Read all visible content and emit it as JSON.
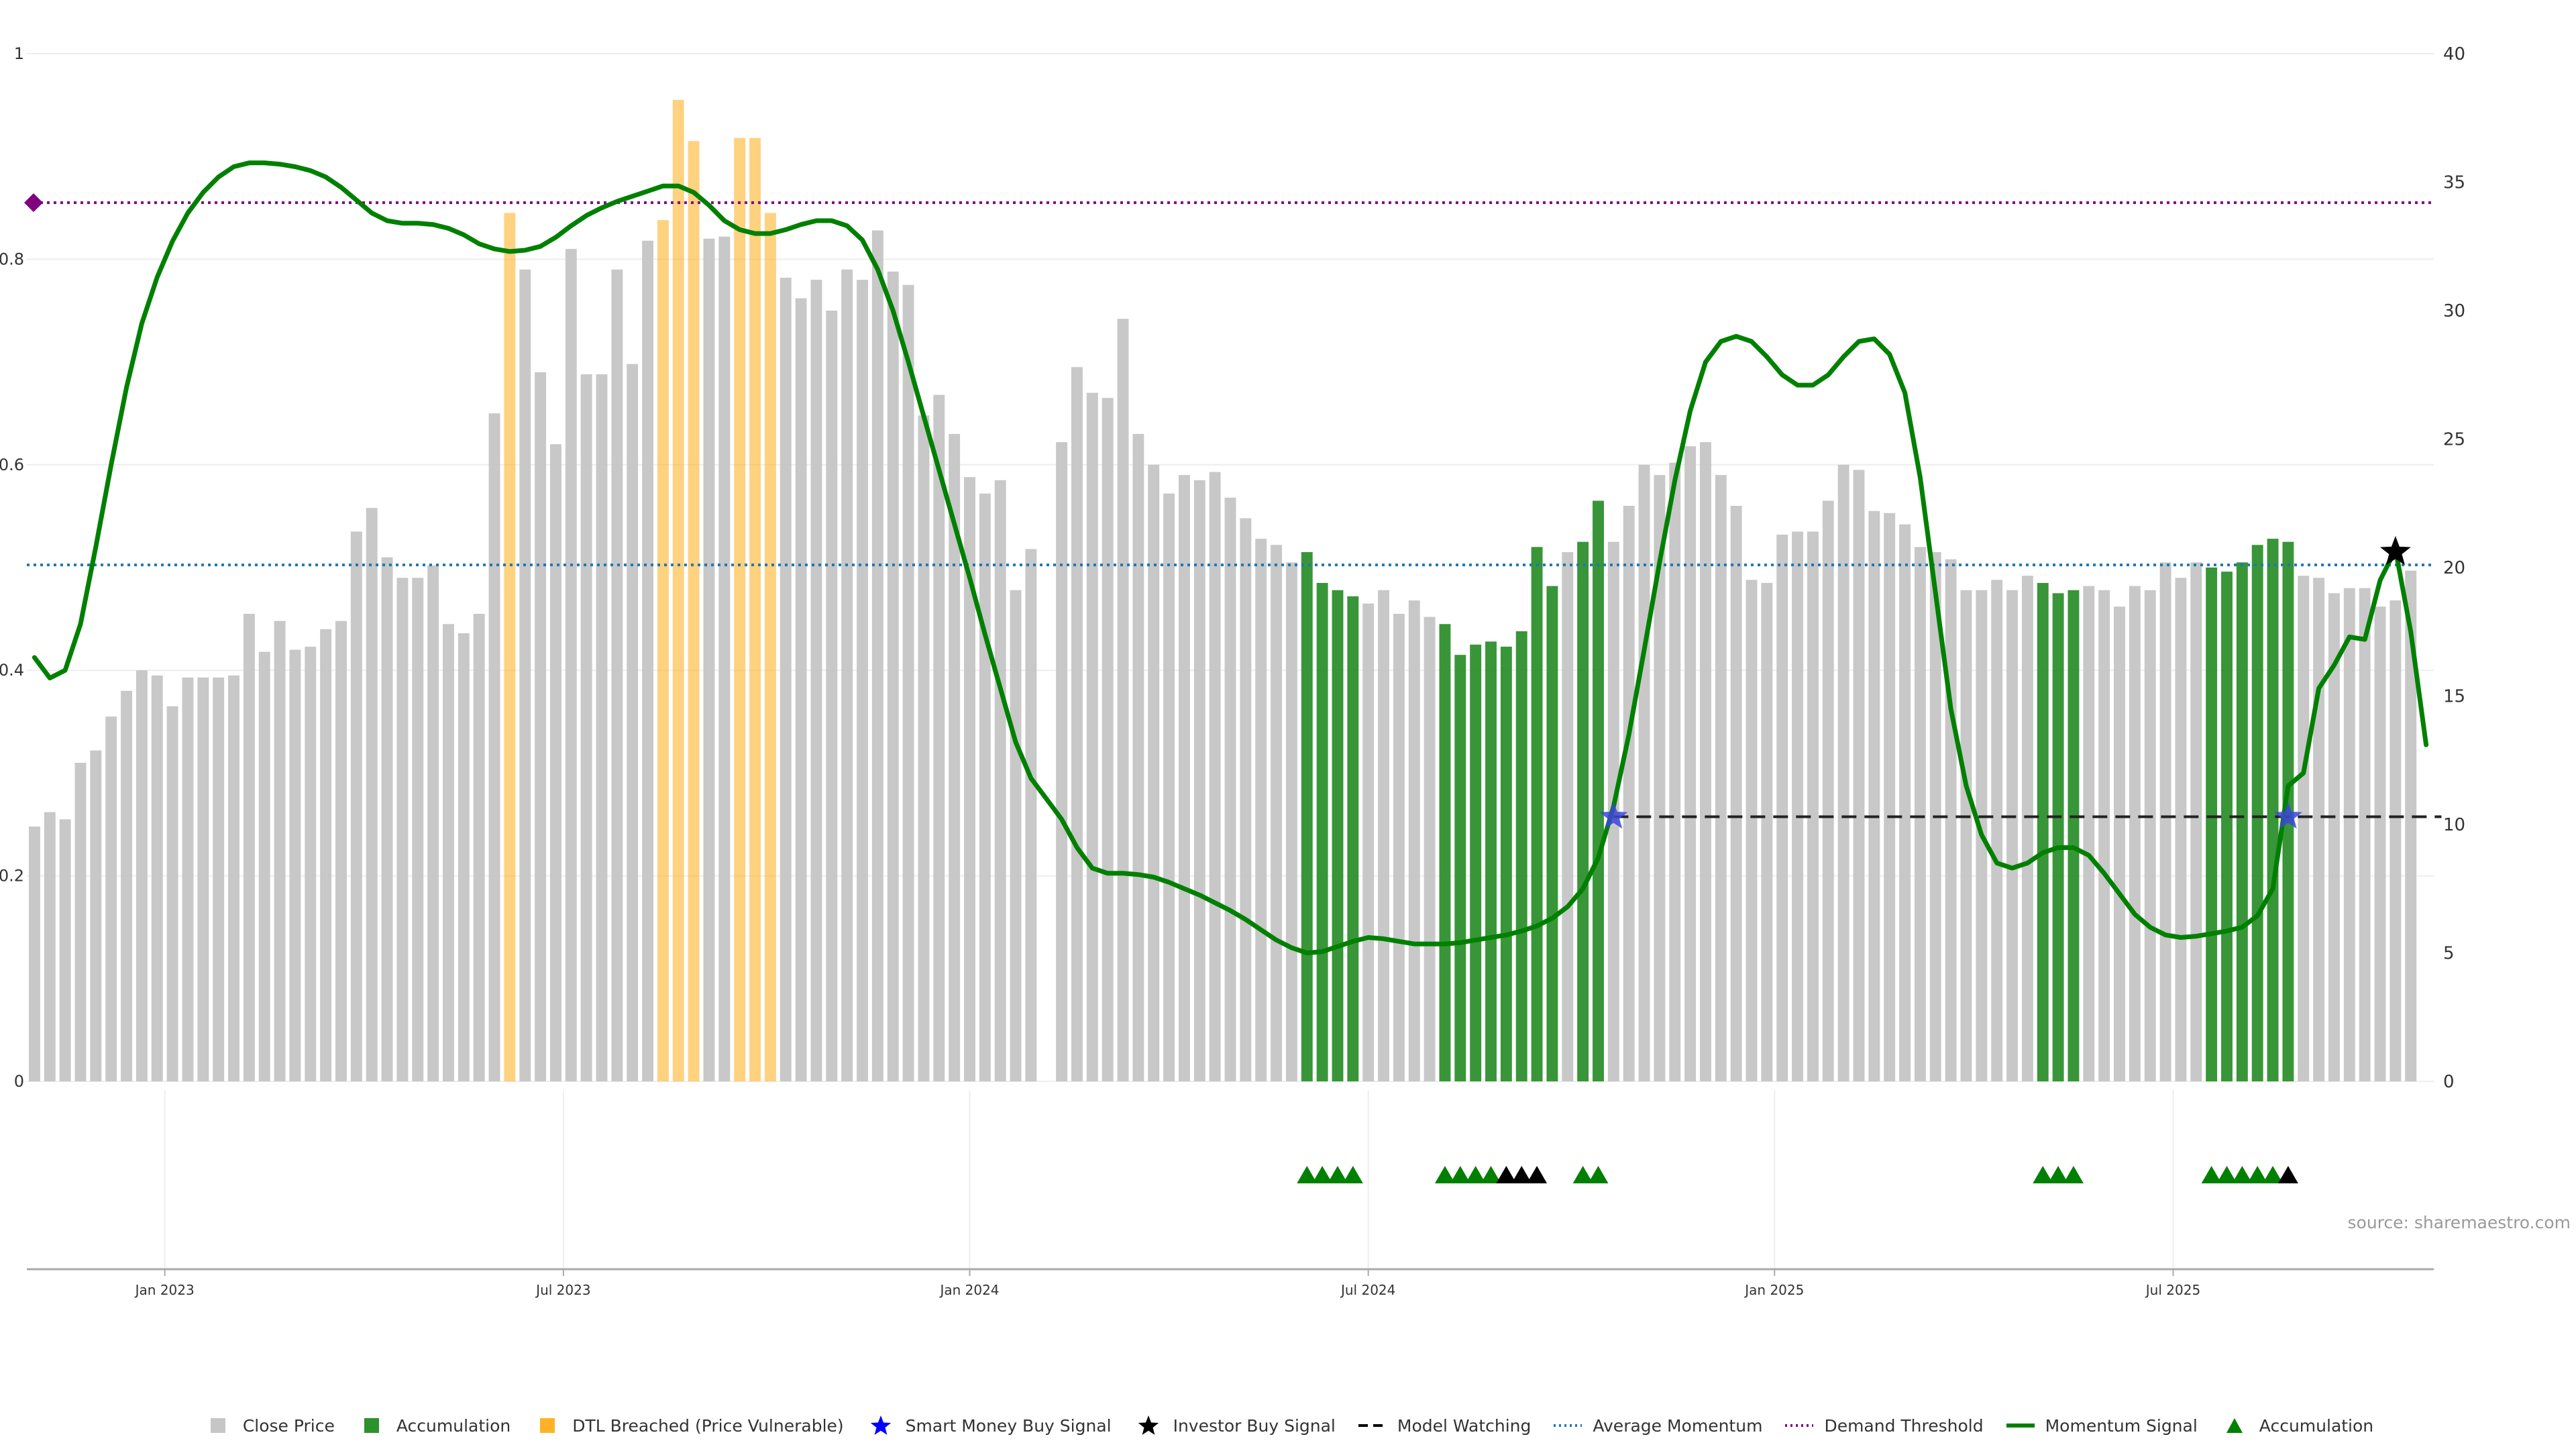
{
  "source_note": "source: sharemaestro.com",
  "legend": [
    {
      "label": "Close Price",
      "kind": "square",
      "color": "#c3c3c3"
    },
    {
      "label": "Accumulation",
      "kind": "square",
      "color": "#228b22"
    },
    {
      "label": "DTL Breached (Price Vulnerable)",
      "kind": "square",
      "color": "#ffa500"
    },
    {
      "label": "Smart Money Buy Signal",
      "kind": "star",
      "color": "#0000ff"
    },
    {
      "label": "Investor Buy Signal",
      "kind": "star",
      "color": "#000000"
    },
    {
      "label": "Model Watching",
      "kind": "dash",
      "color": "#000000"
    },
    {
      "label": "Average Momentum",
      "kind": "dot",
      "color": "#1f77b4"
    },
    {
      "label": "Demand Threshold",
      "kind": "dot",
      "color": "#800080"
    },
    {
      "label": "Momentum Signal",
      "kind": "line",
      "color": "#008000"
    },
    {
      "label": "Accumulation",
      "kind": "triangle",
      "color": "#008000"
    }
  ],
  "chart_data": {
    "type": "bar",
    "left_axis": {
      "ylim": [
        0,
        1
      ],
      "ticks": [
        "0",
        "0.2",
        "0.4",
        "0.6",
        "0.8",
        "1"
      ]
    },
    "right_axis": {
      "ylim": [
        0,
        40
      ],
      "ticks": [
        "0",
        "5",
        "10",
        "15",
        "20",
        "25",
        "30",
        "35",
        "40"
      ]
    },
    "x_ticks": [
      {
        "label": "Jan 2023",
        "week": 8.5
      },
      {
        "label": "Jul 2023",
        "week": 34.5
      },
      {
        "label": "Jan 2024",
        "week": 61
      },
      {
        "label": "Jul 2024",
        "week": 87
      },
      {
        "label": "Jan 2025",
        "week": 113.5
      },
      {
        "label": "Jul 2025",
        "week": 139.5
      }
    ],
    "bar_colors": {
      "price": "#c3c3c3",
      "accumulation": "#228b22",
      "dtl": "#ffa500"
    },
    "close_price_weekly": [
      0.248,
      0.262,
      0.255,
      0.31,
      0.322,
      0.355,
      0.38,
      0.4,
      0.395,
      0.365,
      0.393,
      0.393,
      0.393,
      0.395,
      0.455,
      0.418,
      0.448,
      0.42,
      0.423,
      0.44,
      0.448,
      0.535,
      0.558,
      0.51,
      0.49,
      0.49,
      0.502,
      0.445,
      0.436,
      0.455,
      0.65,
      0.845,
      0.79,
      0.69,
      0.62,
      0.81,
      0.688,
      0.688,
      0.79,
      0.698,
      0.818,
      0.838,
      0.955,
      0.915,
      0.82,
      0.822,
      0.918,
      0.918,
      0.845,
      0.782,
      0.762,
      0.78,
      0.75,
      0.79,
      0.78,
      0.828,
      0.788,
      0.775,
      0.648,
      0.668,
      0.63,
      0.588,
      0.572,
      0.585,
      0.478,
      0.518,
      null,
      0.622,
      0.695,
      0.67,
      0.665,
      0.742,
      0.63,
      0.6,
      0.572,
      0.59,
      0.585,
      0.593,
      0.568,
      0.548,
      0.528,
      0.522,
      0.505,
      0.515,
      0.485,
      0.478,
      0.472,
      0.465,
      0.478,
      0.455,
      0.468,
      0.452,
      0.445,
      0.415,
      0.425,
      0.428,
      0.423,
      0.438,
      0.52,
      0.482,
      0.515,
      0.525,
      0.565,
      0.525,
      0.56,
      0.6,
      0.59,
      0.602,
      0.618,
      0.622,
      0.59,
      0.56,
      0.488,
      0.485,
      0.532,
      0.535,
      0.535,
      0.565,
      0.6,
      0.595,
      0.555,
      0.553,
      0.542,
      0.52,
      0.515,
      0.508,
      0.478,
      0.478,
      0.488,
      0.478,
      0.492,
      0.485,
      0.475,
      0.478,
      0.482,
      0.478,
      0.462,
      0.482,
      0.478,
      0.505,
      0.49,
      0.505,
      0.5,
      0.496,
      0.505,
      0.522,
      0.528,
      0.525,
      0.492,
      0.49,
      0.475,
      0.48,
      0.48,
      0.462,
      0.468,
      0.497
    ],
    "accumulation_weeks": [
      83,
      84,
      85,
      86,
      92,
      93,
      94,
      95,
      96,
      97,
      98,
      99,
      101,
      102,
      131,
      132,
      133,
      142,
      143,
      144,
      145,
      146,
      147
    ],
    "dtl_weeks": [
      31,
      41,
      42,
      43,
      46,
      47,
      48
    ],
    "momentum_signal": {
      "name": "Momentum Signal",
      "color": "#008000",
      "points": [
        [
          0,
          16.5
        ],
        [
          1,
          15.7
        ],
        [
          2,
          16.0
        ],
        [
          3,
          17.8
        ],
        [
          4,
          20.8
        ],
        [
          5,
          24.0
        ],
        [
          6,
          27.0
        ],
        [
          7,
          29.5
        ],
        [
          8,
          31.3
        ],
        [
          9,
          32.7
        ],
        [
          10,
          33.8
        ],
        [
          11,
          34.6
        ],
        [
          12,
          35.2
        ],
        [
          13,
          35.6
        ],
        [
          14,
          35.75
        ],
        [
          15,
          35.75
        ],
        [
          16,
          35.7
        ],
        [
          17,
          35.6
        ],
        [
          18,
          35.45
        ],
        [
          19,
          35.2
        ],
        [
          20,
          34.8
        ],
        [
          21,
          34.3
        ],
        [
          22,
          33.8
        ],
        [
          23,
          33.5
        ],
        [
          24,
          33.4
        ],
        [
          25,
          33.4
        ],
        [
          26,
          33.35
        ],
        [
          27,
          33.2
        ],
        [
          28,
          32.95
        ],
        [
          29,
          32.6
        ],
        [
          30,
          32.4
        ],
        [
          31,
          32.3
        ],
        [
          32,
          32.35
        ],
        [
          33,
          32.5
        ],
        [
          34,
          32.85
        ],
        [
          35,
          33.3
        ],
        [
          36,
          33.7
        ],
        [
          37,
          34.0
        ],
        [
          38,
          34.25
        ],
        [
          39,
          34.45
        ],
        [
          40,
          34.65
        ],
        [
          41,
          34.85
        ],
        [
          42,
          34.85
        ],
        [
          43,
          34.6
        ],
        [
          44,
          34.1
        ],
        [
          45,
          33.5
        ],
        [
          46,
          33.15
        ],
        [
          47,
          33.0
        ],
        [
          48,
          33.0
        ],
        [
          49,
          33.15
        ],
        [
          50,
          33.35
        ],
        [
          51,
          33.5
        ],
        [
          52,
          33.5
        ],
        [
          53,
          33.3
        ],
        [
          54,
          32.75
        ],
        [
          55,
          31.6
        ],
        [
          56,
          30.0
        ],
        [
          57,
          28.0
        ],
        [
          58,
          25.9
        ],
        [
          59,
          23.8
        ],
        [
          60,
          21.7
        ],
        [
          61,
          19.6
        ],
        [
          62,
          17.4
        ],
        [
          63,
          15.3
        ],
        [
          64,
          13.2
        ],
        [
          65,
          11.8
        ],
        [
          66,
          11.0
        ],
        [
          67,
          10.2
        ],
        [
          68,
          9.1
        ],
        [
          69,
          8.3
        ],
        [
          70,
          8.1
        ],
        [
          71,
          8.1
        ],
        [
          72,
          8.05
        ],
        [
          73,
          7.95
        ],
        [
          74,
          7.75
        ],
        [
          75,
          7.5
        ],
        [
          76,
          7.25
        ],
        [
          77,
          6.95
        ],
        [
          78,
          6.65
        ],
        [
          79,
          6.3
        ],
        [
          80,
          5.9
        ],
        [
          81,
          5.5
        ],
        [
          82,
          5.2
        ],
        [
          83,
          5.0
        ],
        [
          84,
          5.05
        ],
        [
          85,
          5.25
        ],
        [
          86,
          5.45
        ],
        [
          87,
          5.6
        ],
        [
          88,
          5.55
        ],
        [
          89,
          5.45
        ],
        [
          90,
          5.35
        ],
        [
          91,
          5.35
        ],
        [
          92,
          5.35
        ],
        [
          93,
          5.4
        ],
        [
          94,
          5.5
        ],
        [
          95,
          5.6
        ],
        [
          96,
          5.7
        ],
        [
          97,
          5.85
        ],
        [
          98,
          6.05
        ],
        [
          99,
          6.35
        ],
        [
          100,
          6.8
        ],
        [
          101,
          7.5
        ],
        [
          102,
          8.7
        ],
        [
          103,
          10.7
        ],
        [
          104,
          13.5
        ],
        [
          105,
          16.8
        ],
        [
          106,
          20.2
        ],
        [
          107,
          23.4
        ],
        [
          108,
          26.1
        ],
        [
          109,
          28.0
        ],
        [
          110,
          28.8
        ],
        [
          111,
          29.0
        ],
        [
          112,
          28.8
        ],
        [
          113,
          28.2
        ],
        [
          114,
          27.5
        ],
        [
          115,
          27.1
        ],
        [
          116,
          27.1
        ],
        [
          117,
          27.5
        ],
        [
          118,
          28.2
        ],
        [
          119,
          28.8
        ],
        [
          120,
          28.9
        ],
        [
          121,
          28.3
        ],
        [
          122,
          26.8
        ],
        [
          123,
          23.5
        ],
        [
          124,
          19.0
        ],
        [
          125,
          14.5
        ],
        [
          126,
          11.5
        ],
        [
          127,
          9.6
        ],
        [
          128,
          8.5
        ],
        [
          129,
          8.3
        ],
        [
          130,
          8.5
        ],
        [
          131,
          8.9
        ],
        [
          132,
          9.1
        ],
        [
          133,
          9.1
        ],
        [
          134,
          8.8
        ],
        [
          135,
          8.1
        ],
        [
          136,
          7.3
        ],
        [
          137,
          6.5
        ],
        [
          138,
          6.0
        ],
        [
          139,
          5.7
        ],
        [
          140,
          5.6
        ],
        [
          141,
          5.65
        ],
        [
          142,
          5.75
        ],
        [
          143,
          5.85
        ],
        [
          144,
          6.0
        ],
        [
          145,
          6.45
        ],
        [
          146,
          7.5
        ],
        [
          147,
          11.5
        ],
        [
          148,
          12.0
        ],
        [
          149,
          15.3
        ],
        [
          150,
          16.2
        ],
        [
          151,
          17.3
        ],
        [
          152,
          17.2
        ],
        [
          153,
          19.5
        ],
        [
          154,
          20.7
        ],
        [
          155,
          17.5
        ],
        [
          156,
          13.1
        ]
      ]
    },
    "average_momentum": {
      "name": "Average Momentum",
      "value": 20.1,
      "color": "#1f77b4"
    },
    "demand_threshold": {
      "name": "Demand Threshold",
      "value": 34.2,
      "color": "#800080"
    },
    "model_watching": {
      "name": "Model Watching",
      "value": 10.3,
      "from_week": 103,
      "to_week": 157
    },
    "smart_money_buy_signals": [
      {
        "week": 103,
        "value": 10.3
      },
      {
        "week": 147,
        "value": 10.3
      }
    ],
    "investor_buy_signals": [
      {
        "week": 154,
        "value": 20.6
      }
    ],
    "accumulation_markers": {
      "green_weeks": [
        83,
        84,
        85,
        86,
        92,
        93,
        94,
        95,
        101,
        102,
        131,
        132,
        133,
        142,
        143,
        144,
        145,
        146
      ],
      "black_weeks": [
        96,
        97,
        98,
        147
      ]
    },
    "grid": true
  }
}
